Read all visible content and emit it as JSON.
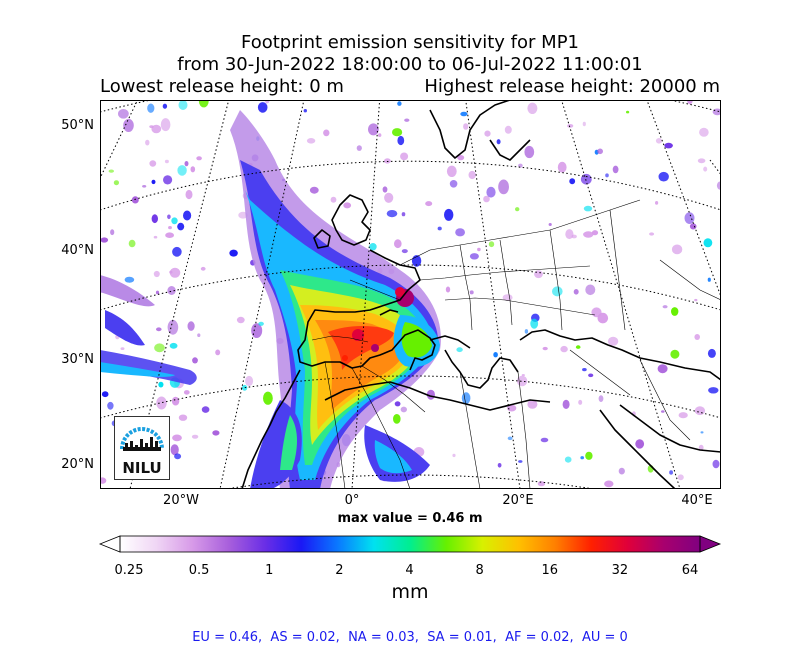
{
  "title": {
    "line1": "Footprint emission sensitivity for MP1",
    "line2": "from 30-Jun-2022 18:00:00 to 06-Jul-2022 11:00:01",
    "lowest": "Lowest release height: 0 m",
    "highest": "Highest release height: 20000 m"
  },
  "lat_labels": [
    "50°N",
    "40°N",
    "30°N",
    "20°N"
  ],
  "lon_labels": [
    "20°W",
    "0°",
    "20°E",
    "40°E"
  ],
  "max_value": "max value = 0.46 m",
  "colorbar": {
    "ticks": [
      "0.25",
      "0.5",
      "1",
      "2",
      "4",
      "8",
      "16",
      "32",
      "64"
    ],
    "unit": "mm",
    "colors": [
      "#ffffff",
      "#f0d6f5",
      "#d79ae8",
      "#a85fdc",
      "#6a2ee6",
      "#1a18f5",
      "#0a78ff",
      "#00e1f0",
      "#00ee90",
      "#66f000",
      "#d8f000",
      "#ffc000",
      "#ff8000",
      "#ff2000",
      "#e0003a",
      "#a8006e",
      "#800080"
    ]
  },
  "regions": "EU = 0.46,  AS = 0.02,  NA = 0.03,  SA = 0.01,  AF = 0.02,  AU = 0",
  "logo": {
    "text": "NILU",
    "accent": "#1aa0e0"
  }
}
